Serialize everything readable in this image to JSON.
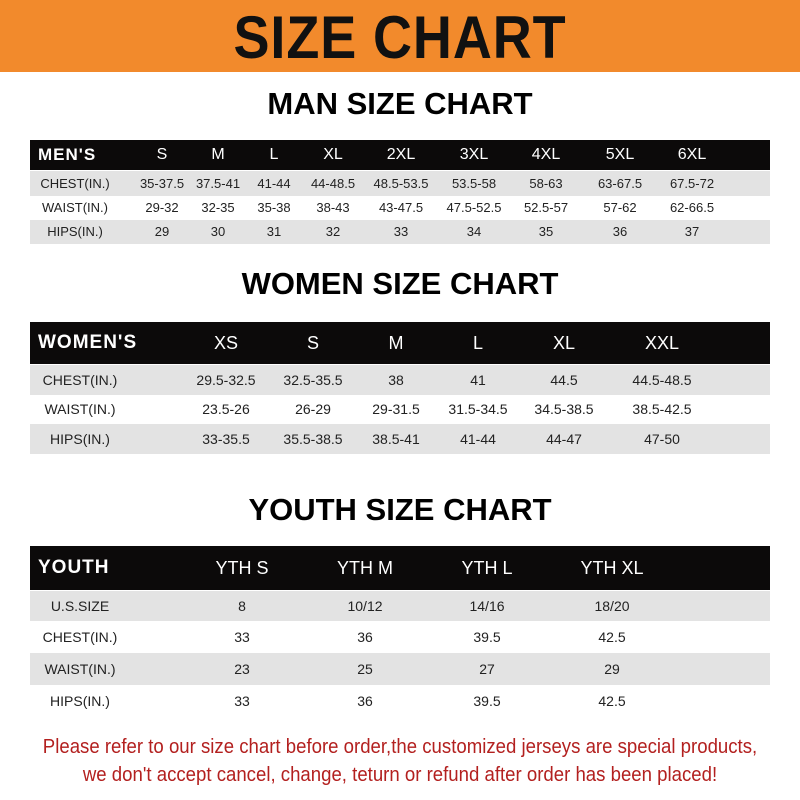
{
  "banner": {
    "title": "SIZE CHART",
    "color": "#f28a2c"
  },
  "men": {
    "title": "MAN SIZE CHART",
    "header": [
      "MEN'S",
      "S",
      "M",
      "L",
      "XL",
      "2XL",
      "3XL",
      "4XL",
      "5XL",
      "6XL"
    ],
    "rows": [
      [
        "CHEST(IN.)",
        "35-37.5",
        "37.5-41",
        "41-44",
        "44-48.5",
        "48.5-53.5",
        "53.5-58",
        "58-63",
        "63-67.5",
        "67.5-72"
      ],
      [
        "WAIST(IN.)",
        "29-32",
        "32-35",
        "35-38",
        "38-43",
        "43-47.5",
        "47.5-52.5",
        "52.5-57",
        "57-62",
        "62-66.5"
      ],
      [
        "HIPS(IN.)",
        "29",
        "30",
        "31",
        "32",
        "33",
        "34",
        "35",
        "36",
        "37"
      ]
    ]
  },
  "women": {
    "title": "WOMEN SIZE CHART",
    "header": [
      "WOMEN'S",
      "XS",
      "S",
      "M",
      "L",
      "XL",
      "XXL"
    ],
    "rows": [
      [
        "CHEST(IN.)",
        "29.5-32.5",
        "32.5-35.5",
        "38",
        "41",
        "44.5",
        "44.5-48.5"
      ],
      [
        "WAIST(IN.)",
        "23.5-26",
        "26-29",
        "29-31.5",
        "31.5-34.5",
        "34.5-38.5",
        "38.5-42.5"
      ],
      [
        "HIPS(IN.)",
        "33-35.5",
        "35.5-38.5",
        "38.5-41",
        "41-44",
        "44-47",
        "47-50"
      ]
    ]
  },
  "youth": {
    "title": "YOUTH SIZE CHART",
    "header": [
      "YOUTH",
      "YTH S",
      "YTH M",
      "YTH L",
      "YTH XL"
    ],
    "rows": [
      [
        "U.S.SIZE",
        "8",
        "10/12",
        "14/16",
        "18/20"
      ],
      [
        "CHEST(IN.)",
        "33",
        "36",
        "39.5",
        "42.5"
      ],
      [
        "WAIST(IN.)",
        "23",
        "25",
        "27",
        "29"
      ],
      [
        "HIPS(IN.)",
        "33",
        "36",
        "39.5",
        "42.5"
      ]
    ]
  },
  "notice": {
    "line1": "Please refer to our size chart before order,the customized jerseys are special products,",
    "line2": "we don't accept cancel, change, teturn or refund after order has been placed!",
    "color": "#b3201f"
  }
}
